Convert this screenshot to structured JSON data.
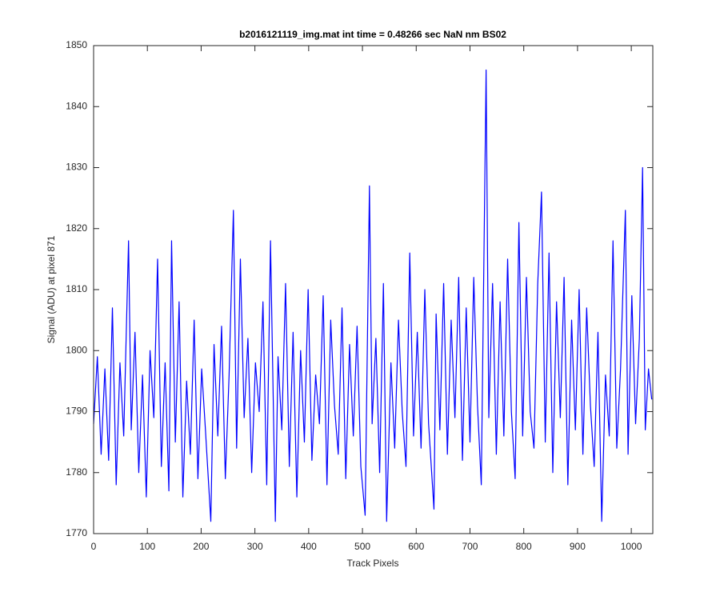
{
  "chart_data": {
    "type": "line",
    "title": "b2016121119_img.mat int time = 0.48266 sec  NaN nm BS02",
    "x_label": "Track Pixels",
    "y_label": "Signal (ADU) at pixel 871",
    "color": "#0000ff",
    "box": true,
    "grid": false,
    "x": [
      0,
      7,
      14,
      21,
      28,
      35,
      42,
      49,
      56,
      65,
      70,
      77,
      84,
      91,
      98,
      105,
      112,
      119,
      126,
      133,
      140,
      145,
      152,
      159,
      166,
      173,
      180,
      187,
      194,
      201,
      208,
      218,
      224,
      231,
      238,
      245,
      252,
      260,
      266,
      273,
      280,
      287,
      294,
      301,
      308,
      315,
      322,
      329,
      338,
      343,
      350,
      357,
      364,
      371,
      378,
      385,
      392,
      399,
      406,
      413,
      420,
      427,
      434,
      441,
      448,
      455,
      462,
      469,
      476,
      483,
      490,
      497,
      505,
      513,
      518,
      525,
      532,
      539,
      545,
      553,
      560,
      567,
      574,
      581,
      588,
      595,
      602,
      609,
      616,
      623,
      633,
      637,
      644,
      651,
      658,
      665,
      672,
      679,
      686,
      693,
      700,
      707,
      714,
      721,
      730,
      735,
      742,
      749,
      756,
      763,
      770,
      777,
      784,
      791,
      798,
      805,
      812,
      819,
      826,
      833,
      840,
      847,
      854,
      861,
      868,
      875,
      882,
      889,
      896,
      903,
      910,
      917,
      924,
      931,
      938,
      945,
      952,
      959,
      966,
      973,
      980,
      989,
      994,
      1001,
      1008,
      1015,
      1021,
      1026,
      1032,
      1038
    ],
    "values": [
      1788,
      1799,
      1783,
      1797,
      1782,
      1807,
      1778,
      1798,
      1786,
      1818,
      1787,
      1803,
      1780,
      1796,
      1776,
      1800,
      1789,
      1815,
      1781,
      1798,
      1777,
      1818,
      1785,
      1808,
      1776,
      1795,
      1783,
      1805,
      1779,
      1797,
      1787,
      1772,
      1801,
      1786,
      1804,
      1779,
      1796,
      1823,
      1784,
      1815,
      1789,
      1802,
      1780,
      1798,
      1790,
      1808,
      1778,
      1818,
      1772,
      1799,
      1787,
      1811,
      1781,
      1803,
      1776,
      1800,
      1785,
      1810,
      1782,
      1796,
      1788,
      1809,
      1778,
      1805,
      1791,
      1783,
      1807,
      1779,
      1801,
      1786,
      1804,
      1781,
      1773,
      1827,
      1788,
      1802,
      1780,
      1811,
      1772,
      1798,
      1784,
      1805,
      1790,
      1781,
      1816,
      1786,
      1803,
      1784,
      1810,
      1788,
      1774,
      1806,
      1787,
      1811,
      1783,
      1805,
      1789,
      1812,
      1782,
      1807,
      1785,
      1812,
      1791,
      1778,
      1846,
      1789,
      1811,
      1783,
      1808,
      1786,
      1815,
      1790,
      1779,
      1821,
      1786,
      1812,
      1790,
      1784,
      1811,
      1826,
      1785,
      1816,
      1780,
      1808,
      1789,
      1812,
      1778,
      1805,
      1787,
      1810,
      1783,
      1807,
      1791,
      1781,
      1803,
      1772,
      1796,
      1786,
      1818,
      1784,
      1797,
      1823,
      1783,
      1809,
      1788,
      1802,
      1830,
      1787,
      1797,
      1792
    ],
    "xlim": [
      0,
      1040
    ],
    "ylim": [
      1770,
      1850
    ],
    "xticks": [
      0,
      100,
      200,
      300,
      400,
      500,
      600,
      700,
      800,
      900,
      1000
    ],
    "yticks": [
      1770,
      1780,
      1790,
      1800,
      1810,
      1820,
      1830,
      1840,
      1850
    ]
  }
}
